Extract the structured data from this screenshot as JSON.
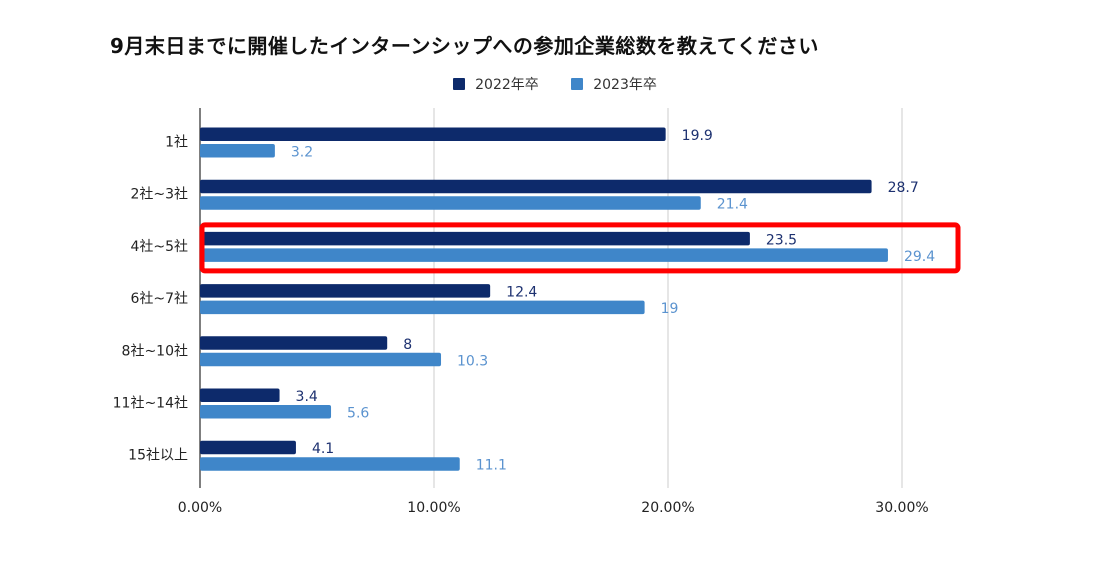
{
  "chart_data": {
    "type": "bar",
    "orientation": "horizontal",
    "title": "9月末日までに開催したインターンシップへの参加企業総数を教えてください",
    "xlabel": "",
    "ylabel": "",
    "xlim": [
      0,
      30
    ],
    "x_ticks": [
      "0.00%",
      "10.00%",
      "20.00%",
      "30.00%"
    ],
    "x_tick_values": [
      0,
      10,
      20,
      30
    ],
    "grid": true,
    "legend_position": "top-center",
    "categories": [
      "1社",
      "2社~3社",
      "4社~5社",
      "6社~7社",
      "8社~10社",
      "11社~14社",
      "15社以上"
    ],
    "series": [
      {
        "name": "2022年卒",
        "color": "#0d2a6b",
        "values": [
          19.9,
          28.7,
          23.5,
          12.4,
          8,
          3.4,
          4.1
        ],
        "labels": [
          "19.9",
          "28.7",
          "23.5",
          "12.4",
          "8",
          "3.4",
          "4.1"
        ]
      },
      {
        "name": "2023年卒",
        "color": "#3f86c9",
        "values": [
          3.2,
          21.4,
          29.4,
          19,
          10.3,
          5.6,
          11.1
        ],
        "labels": [
          "3.2",
          "21.4",
          "29.4",
          "19",
          "10.3",
          "5.6",
          "11.1"
        ]
      }
    ],
    "highlight": {
      "category": "4社~5社",
      "color": "#ff0000"
    }
  }
}
